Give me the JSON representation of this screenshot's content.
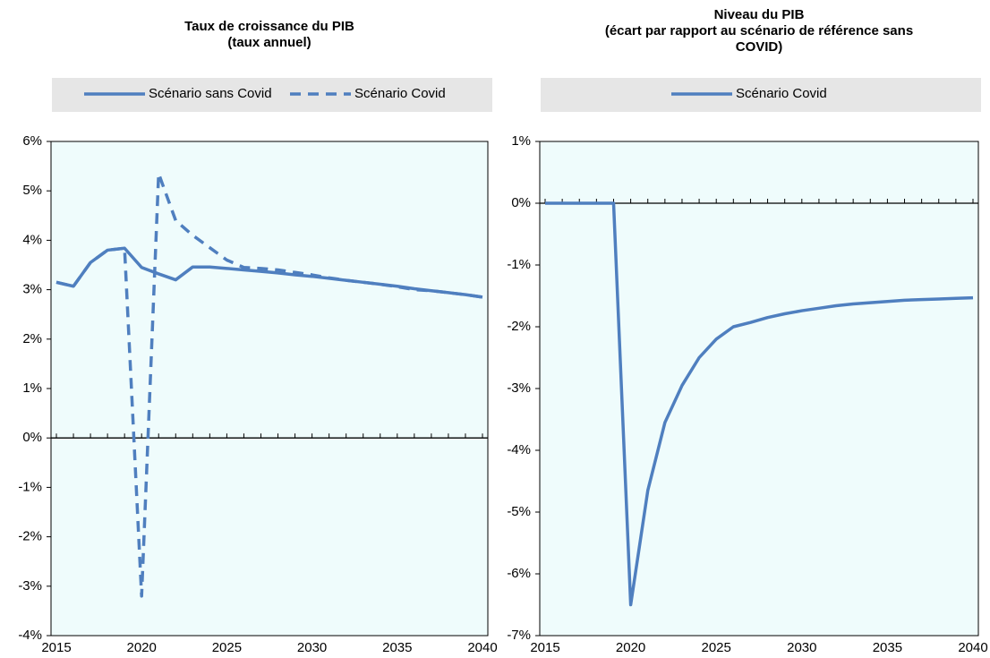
{
  "chart_data": [
    {
      "type": "line",
      "title": "Taux de croissance du PIB",
      "subtitle": "(taux annuel)",
      "legend": "top",
      "x": [
        2015,
        2016,
        2017,
        2018,
        2019,
        2020,
        2021,
        2022,
        2023,
        2024,
        2025,
        2026,
        2027,
        2028,
        2029,
        2030,
        2031,
        2032,
        2033,
        2034,
        2035,
        2036,
        2037,
        2038,
        2039,
        2040
      ],
      "series": [
        {
          "name": "Scénario sans Covid",
          "color": "#4f7fbf",
          "dash": false,
          "values": [
            3.15,
            3.07,
            3.55,
            3.8,
            3.84,
            3.45,
            3.32,
            3.2,
            3.46,
            3.46,
            3.43,
            3.4,
            3.37,
            3.34,
            3.3,
            3.27,
            3.23,
            3.19,
            3.15,
            3.11,
            3.07,
            3.02,
            2.98,
            2.94,
            2.9,
            2.85
          ]
        },
        {
          "name": "Scénario Covid",
          "color": "#4f7fbf",
          "dash": true,
          "values": [
            3.15,
            3.07,
            3.55,
            3.8,
            3.84,
            -3.2,
            5.35,
            4.4,
            4.1,
            3.85,
            3.6,
            3.45,
            3.43,
            3.4,
            3.35,
            3.3,
            3.24,
            3.19,
            3.15,
            3.11,
            3.06,
            3.0,
            2.98,
            2.94,
            2.9,
            2.85
          ]
        }
      ],
      "xlim": [
        2015,
        2040
      ],
      "xticks": [
        2015,
        2020,
        2025,
        2030,
        2035,
        2040
      ],
      "ylim": [
        -4,
        6
      ],
      "yticks": [
        {
          "value": -4,
          "label": "-4%"
        },
        {
          "value": -3,
          "label": "-3%"
        },
        {
          "value": -2,
          "label": "-2%"
        },
        {
          "value": -1,
          "label": "-1%"
        },
        {
          "value": 0,
          "label": "0%"
        },
        {
          "value": 1,
          "label": "1%"
        },
        {
          "value": 2,
          "label": "2%"
        },
        {
          "value": 3,
          "label": "3%"
        },
        {
          "value": 4,
          "label": "4%"
        },
        {
          "value": 5,
          "label": "5%"
        },
        {
          "value": 6,
          "label": "6%"
        }
      ]
    },
    {
      "type": "line",
      "title": "Niveau du PIB",
      "subtitle": "(écart par rapport au scénario de référence sans",
      "subtitle2": "COVID)",
      "legend": "top",
      "x": [
        2015,
        2016,
        2017,
        2018,
        2019,
        2020,
        2021,
        2022,
        2023,
        2024,
        2025,
        2026,
        2027,
        2028,
        2029,
        2030,
        2031,
        2032,
        2033,
        2034,
        2035,
        2036,
        2037,
        2038,
        2039,
        2040
      ],
      "series": [
        {
          "name": "Scénario Covid",
          "color": "#4f7fbf",
          "dash": false,
          "values": [
            0,
            0,
            0,
            0,
            0,
            -6.5,
            -4.65,
            -3.55,
            -2.95,
            -2.5,
            -2.2,
            -2.0,
            -1.93,
            -1.85,
            -1.79,
            -1.74,
            -1.7,
            -1.66,
            -1.63,
            -1.61,
            -1.59,
            -1.57,
            -1.56,
            -1.55,
            -1.54,
            -1.53
          ]
        }
      ],
      "xlim": [
        2015,
        2040
      ],
      "xticks": [
        2015,
        2020,
        2025,
        2030,
        2035,
        2040
      ],
      "ylim": [
        -7,
        1
      ],
      "yticks": [
        {
          "value": -7,
          "label": "-7%"
        },
        {
          "value": -6,
          "label": "-6%"
        },
        {
          "value": -5,
          "label": "-5%"
        },
        {
          "value": -4,
          "label": "-4%"
        },
        {
          "value": -3,
          "label": "-3%"
        },
        {
          "value": -2,
          "label": "-2%"
        },
        {
          "value": -1,
          "label": "-1%"
        },
        {
          "value": 0,
          "label": "0%"
        },
        {
          "value": 1,
          "label": "1%"
        }
      ]
    }
  ]
}
